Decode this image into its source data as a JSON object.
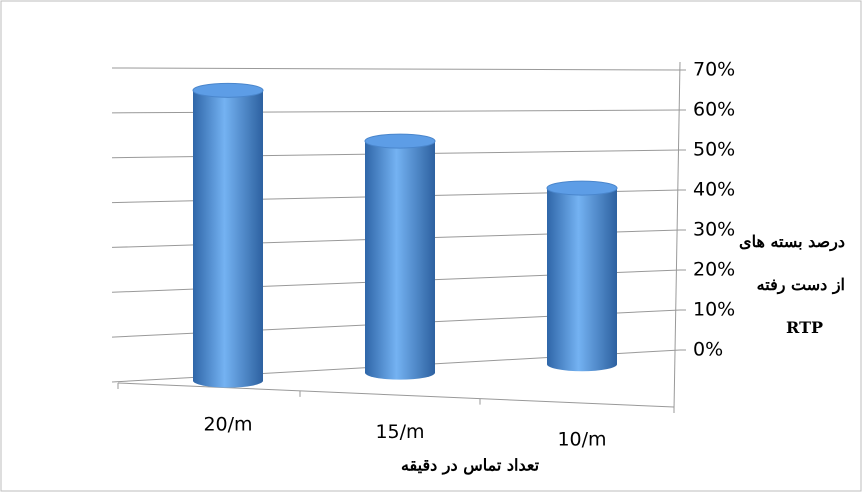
{
  "chart_data": {
    "type": "bar",
    "categories": [
      "20/m",
      "15/m",
      "10/m"
    ],
    "values": [
      65,
      53,
      41
    ],
    "color": "#4f8fd8",
    "ylim": [
      0,
      70
    ],
    "yticks": [
      {
        "value": 0,
        "label": "0%"
      },
      {
        "value": 10,
        "label": "10%"
      },
      {
        "value": 20,
        "label": "20%"
      },
      {
        "value": 30,
        "label": "30%"
      },
      {
        "value": 40,
        "label": "40%"
      },
      {
        "value": 50,
        "label": "50%"
      },
      {
        "value": 60,
        "label": "60%"
      },
      {
        "value": 70,
        "label": "70%"
      }
    ],
    "grid": true,
    "x_label": "تعداد تماس در دقیقه",
    "y_label": [
      "درصد بسته های",
      "از دست رفته",
      "RTP"
    ]
  }
}
